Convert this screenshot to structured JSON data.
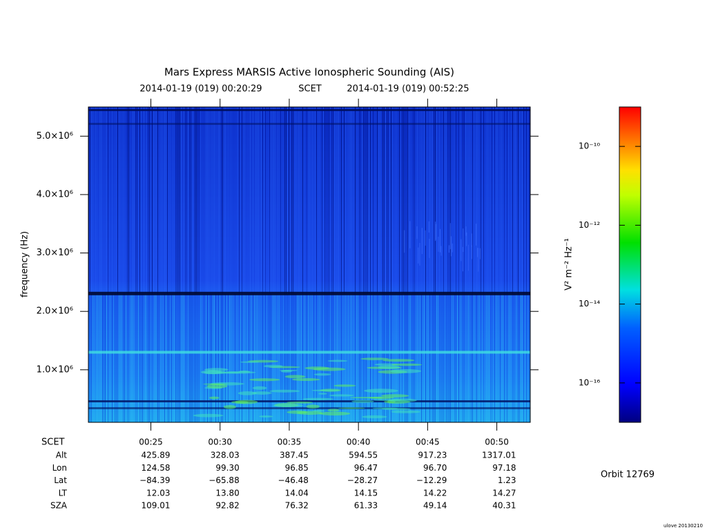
{
  "chart_data": {
    "type": "spectrogram",
    "title": "Mars Express MARSIS Active Ionospheric Sounding (AIS)",
    "xlabel": "SCET",
    "xlim": [
      "2014-01-19 (019) 00:20:29",
      "2014-01-19 (019) 00:52:25"
    ],
    "xticks": [
      "00:25",
      "00:30",
      "00:35",
      "00:40",
      "00:45",
      "00:50"
    ],
    "ylabel": "frequency (Hz)",
    "ylim": [
      100000,
      5500000
    ],
    "yticks": [
      {
        "value": 1000000,
        "label": "1.0×10⁶"
      },
      {
        "value": 2000000,
        "label": "2.0×10⁶"
      },
      {
        "value": 3000000,
        "label": "3.0×10⁶"
      },
      {
        "value": 4000000,
        "label": "4.0×10⁶"
      },
      {
        "value": 5000000,
        "label": "5.0×10⁶"
      }
    ],
    "colorbar": {
      "label": "V² m⁻² Hz⁻¹",
      "scale": "log",
      "lim": [
        1e-17,
        1e-09
      ],
      "ticks": [
        {
          "value": 1e-16,
          "label": "10⁻¹⁶"
        },
        {
          "value": 1e-14,
          "label": "10⁻¹⁴"
        },
        {
          "value": 1e-12,
          "label": "10⁻¹²"
        },
        {
          "value": 1e-10,
          "label": "10⁻¹⁰"
        }
      ]
    },
    "ephemeris": [
      {
        "name": "Alt",
        "values": [
          "425.89",
          "328.03",
          "387.45",
          "594.55",
          "917.23",
          "1317.01"
        ]
      },
      {
        "name": "Lon",
        "values": [
          "124.58",
          "99.30",
          "96.85",
          "96.47",
          "96.70",
          "97.18"
        ]
      },
      {
        "name": "Lat",
        "values": [
          "−84.39",
          "−65.88",
          "−46.48",
          "−28.27",
          "−12.29",
          "1.23"
        ]
      },
      {
        "name": "LT",
        "values": [
          "12.03",
          "13.80",
          "14.04",
          "14.15",
          "14.22",
          "14.27"
        ]
      },
      {
        "name": "SZA",
        "values": [
          "109.01",
          "92.82",
          "76.32",
          "61.33",
          "49.14",
          "40.31"
        ]
      }
    ],
    "orbit": "Orbit 12769",
    "footer": "ulove 20130210"
  }
}
